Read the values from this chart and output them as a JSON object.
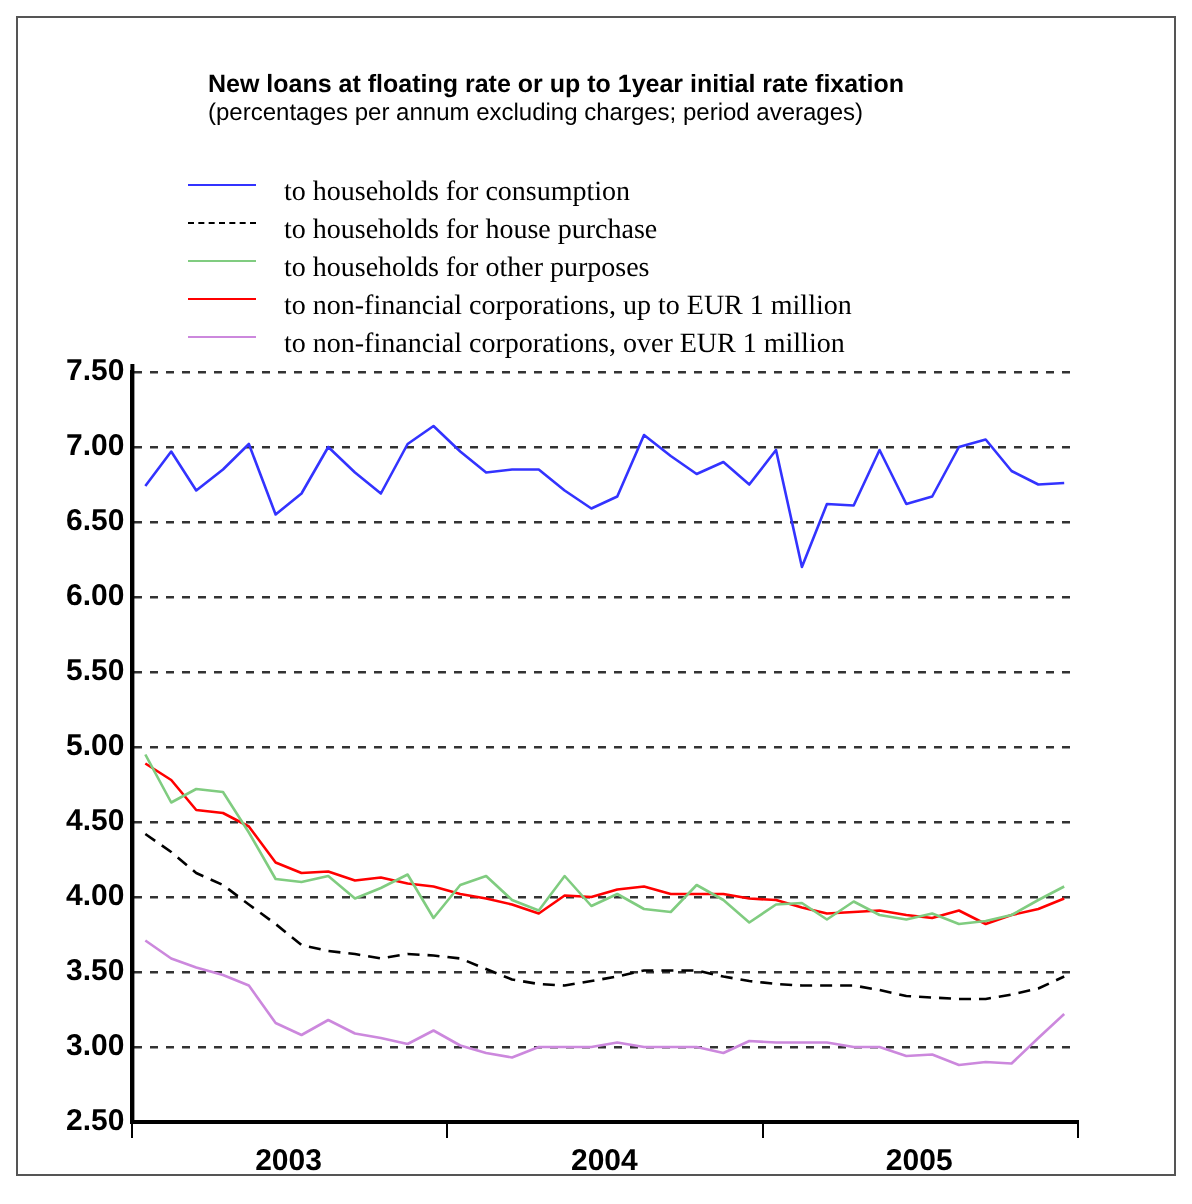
{
  "chart_data": {
    "type": "line",
    "title": "New loans at floating rate or up to 1year initial rate fixation",
    "subtitle": "(percentages per annum excluding charges; period averages)",
    "x": [
      "2003-01-16",
      "2003-02-15",
      "2003-03-16",
      "2003-04-16",
      "2003-05-16",
      "2003-06-16",
      "2003-07-16",
      "2003-08-16",
      "2003-09-16",
      "2003-10-16",
      "2003-11-16",
      "2003-12-16",
      "2004-01-16",
      "2004-02-15",
      "2004-03-16",
      "2004-04-16",
      "2004-05-16",
      "2004-06-16",
      "2004-07-16",
      "2004-08-16",
      "2004-09-16",
      "2004-10-16",
      "2004-11-16",
      "2004-12-16",
      "2005-01-16",
      "2005-02-15",
      "2005-03-16",
      "2005-04-16",
      "2005-05-16",
      "2005-06-16",
      "2005-07-16",
      "2005-08-16",
      "2005-09-16",
      "2005-10-16",
      "2005-11-16",
      "2005-12-16"
    ],
    "series": [
      {
        "name": "to households for consumption",
        "color": "#3333ff",
        "values": [
          6.74,
          6.97,
          6.71,
          6.85,
          7.02,
          6.55,
          6.69,
          7.0,
          6.83,
          6.69,
          7.02,
          7.14,
          6.97,
          6.83,
          6.85,
          6.85,
          6.71,
          6.59,
          6.67,
          7.08,
          6.94,
          6.82,
          6.9,
          6.75,
          6.98,
          6.2,
          6.62,
          6.61,
          6.98,
          6.62,
          6.67,
          7.0,
          7.05,
          6.84,
          6.75,
          6.76
        ]
      },
      {
        "name": "to households for house purchase",
        "color": "#000000",
        "line_style": "dashed",
        "values": [
          4.42,
          4.3,
          4.16,
          4.08,
          3.95,
          3.82,
          3.68,
          3.64,
          3.62,
          3.59,
          3.62,
          3.61,
          3.59,
          3.52,
          3.45,
          3.42,
          3.41,
          3.44,
          3.47,
          3.51,
          3.51,
          3.51,
          3.47,
          3.44,
          3.42,
          3.41,
          3.41,
          3.41,
          3.38,
          3.34,
          3.33,
          3.32,
          3.32,
          3.35,
          3.39,
          3.47
        ]
      },
      {
        "name": "to households for other purposes",
        "color": "#80cc80",
        "values": [
          4.95,
          4.63,
          4.72,
          4.7,
          4.43,
          4.12,
          4.1,
          4.14,
          3.99,
          4.06,
          4.15,
          3.86,
          4.08,
          4.14,
          3.98,
          3.91,
          4.14,
          3.94,
          4.02,
          3.92,
          3.9,
          4.08,
          3.98,
          3.83,
          3.95,
          3.96,
          3.85,
          3.97,
          3.88,
          3.85,
          3.89,
          3.82,
          3.84,
          3.88,
          3.98,
          4.07
        ]
      },
      {
        "name": "to non-financial corporations, up to EUR 1 million",
        "color": "#ff0000",
        "values": [
          4.89,
          4.78,
          4.58,
          4.56,
          4.47,
          4.23,
          4.16,
          4.17,
          4.11,
          4.13,
          4.09,
          4.07,
          4.02,
          3.99,
          3.95,
          3.89,
          4.01,
          4.0,
          4.05,
          4.07,
          4.02,
          4.02,
          4.02,
          3.99,
          3.98,
          3.93,
          3.89,
          3.9,
          3.91,
          3.88,
          3.86,
          3.91,
          3.82,
          3.88,
          3.92,
          3.99
        ]
      },
      {
        "name": "to non-financial corporations, over EUR 1 million",
        "color": "#cc88dd",
        "values": [
          3.71,
          3.59,
          3.53,
          3.48,
          3.41,
          3.16,
          3.08,
          3.18,
          3.09,
          3.06,
          3.02,
          3.11,
          3.01,
          2.96,
          2.93,
          3.0,
          3.0,
          3.0,
          3.03,
          3.0,
          3.0,
          3.0,
          2.96,
          3.04,
          3.03,
          3.03,
          3.03,
          3.0,
          3.0,
          2.94,
          2.95,
          2.88,
          2.9,
          2.89,
          3.06,
          3.22
        ]
      }
    ],
    "xlim": [
      "2003-01-01",
      "2006-01-01"
    ],
    "xticks": [
      {
        "value": "2003-01-01",
        "label": null
      },
      {
        "value": "2003-07-01",
        "label": "2003"
      },
      {
        "value": "2004-01-01",
        "label": null
      },
      {
        "value": "2004-07-01",
        "label": "2004"
      },
      {
        "value": "2005-01-01",
        "label": null
      },
      {
        "value": "2005-07-01",
        "label": "2005"
      },
      {
        "value": "2006-01-01",
        "label": null
      }
    ],
    "ylim": [
      2.5,
      7.5
    ],
    "yticks": [
      {
        "value": 2.5,
        "label": "2.50"
      },
      {
        "value": 3,
        "label": "3.00"
      },
      {
        "value": 3.5,
        "label": "3.50"
      },
      {
        "value": 4,
        "label": "4.00"
      },
      {
        "value": 4.5,
        "label": "4.50"
      },
      {
        "value": 5,
        "label": "5.00"
      },
      {
        "value": 5.5,
        "label": "5.50"
      },
      {
        "value": 6,
        "label": "6.00"
      },
      {
        "value": 6.5,
        "label": "6.50"
      },
      {
        "value": 7,
        "label": "7.00"
      },
      {
        "value": 7.5,
        "label": "7.50"
      }
    ],
    "grid": "y",
    "legend": "top",
    "marker": "none",
    "line_style": "solid"
  }
}
